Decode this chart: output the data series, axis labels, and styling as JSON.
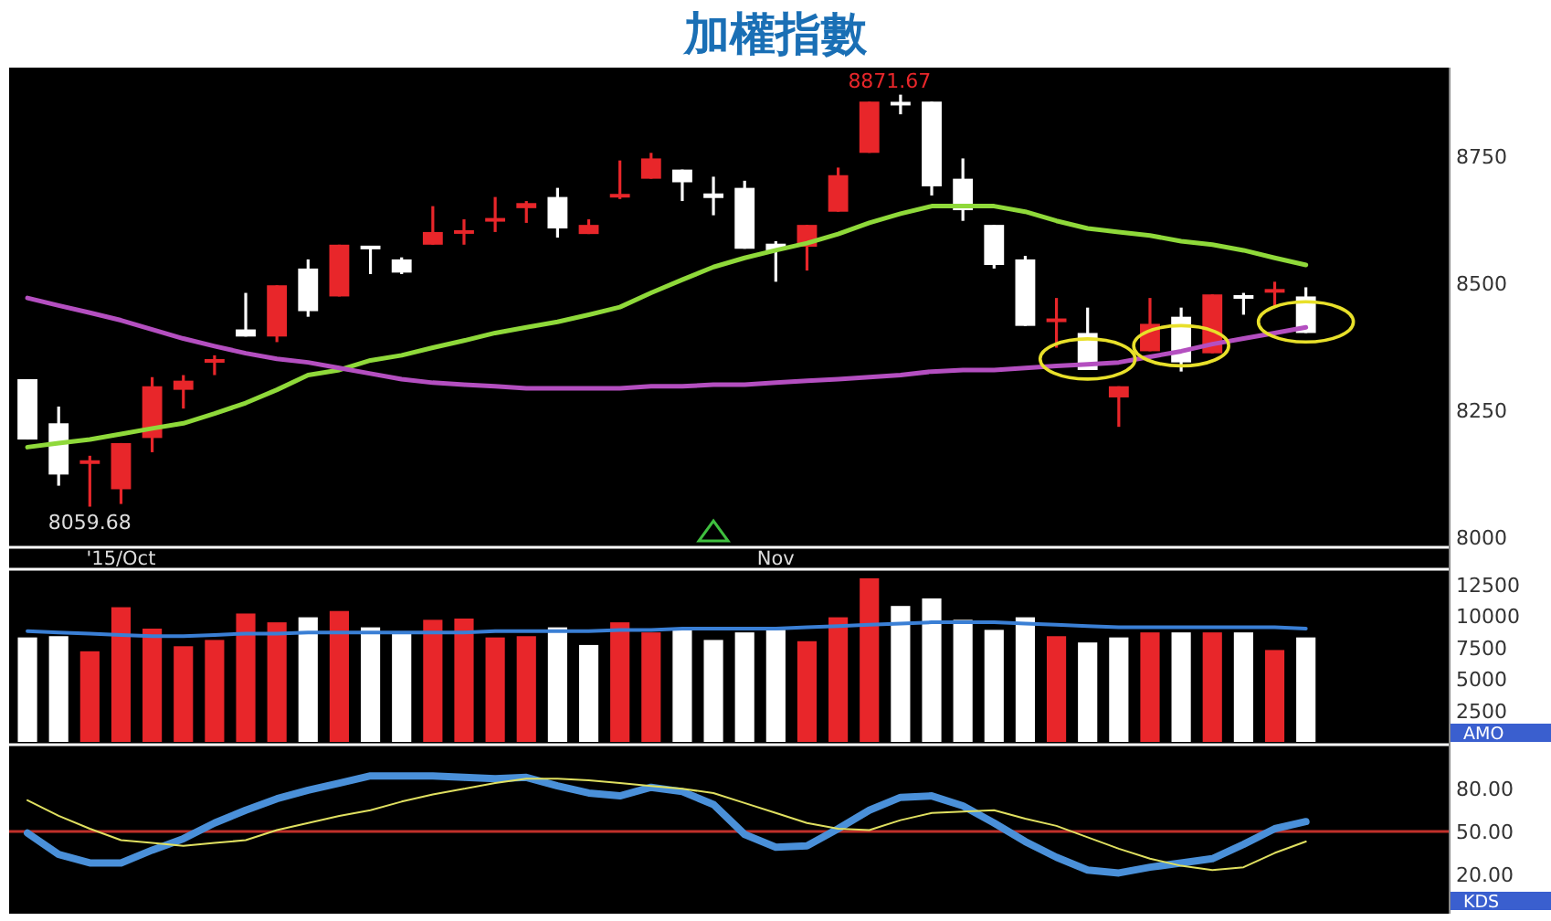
{
  "chart_data": [
    {
      "type": "candlestick",
      "title": "加權指數",
      "categories": [
        null,
        null,
        null,
        "'15/Oct",
        null,
        null,
        null,
        null,
        null,
        null,
        null,
        null,
        null,
        null,
        null,
        null,
        null,
        null,
        null,
        null,
        null,
        null,
        null,
        null,
        "Nov",
        null,
        null,
        null,
        null,
        null,
        null,
        null,
        null,
        null,
        null,
        null,
        null,
        null,
        null,
        null,
        null,
        null
      ],
      "ohlc": [
        [
          8311,
          8311,
          8192,
          8192
        ],
        [
          8224,
          8257,
          8101,
          8123
        ],
        [
          8145,
          8160,
          8059.68,
          8150
        ],
        [
          8094,
          8185,
          8065,
          8185
        ],
        [
          8195,
          8315,
          8167,
          8297
        ],
        [
          8290,
          8319,
          8253,
          8308
        ],
        [
          8344,
          8358,
          8319,
          8350
        ],
        [
          8409,
          8481,
          8395,
          8395
        ],
        [
          8395,
          8496,
          8384,
          8496
        ],
        [
          8529,
          8547,
          8434,
          8445
        ],
        [
          8474,
          8576,
          8474,
          8576
        ],
        [
          8572,
          8572,
          8518,
          8569
        ],
        [
          8547,
          8551,
          8518,
          8521
        ],
        [
          8576,
          8652,
          8576,
          8601
        ],
        [
          8598,
          8626,
          8576,
          8604
        ],
        [
          8622,
          8670,
          8601,
          8628
        ],
        [
          8648,
          8662,
          8619,
          8658
        ],
        [
          8670,
          8688,
          8590,
          8608
        ],
        [
          8597,
          8626,
          8597,
          8615
        ],
        [
          8670,
          8742,
          8666,
          8675
        ],
        [
          8706,
          8757,
          8706,
          8746
        ],
        [
          8724,
          8724,
          8662,
          8699
        ],
        [
          8677,
          8710,
          8634,
          8668
        ],
        [
          8688,
          8702,
          8568,
          8568
        ],
        [
          8578,
          8583,
          8503,
          8565
        ],
        [
          8572,
          8615,
          8525,
          8615
        ],
        [
          8641,
          8728,
          8641,
          8713
        ],
        [
          8757,
          8858,
          8757,
          8858
        ],
        [
          8856,
          8871.67,
          8833,
          8852
        ],
        [
          8858,
          8858,
          8673,
          8691
        ],
        [
          8706,
          8746,
          8623,
          8644
        ],
        [
          8615,
          8615,
          8529,
          8536
        ],
        [
          8547,
          8554,
          8416,
          8416
        ],
        [
          8424,
          8471,
          8373,
          8430
        ],
        [
          8402,
          8452,
          8329,
          8329
        ],
        [
          8275,
          8297,
          8217,
          8297
        ],
        [
          8366,
          8471,
          8366,
          8420
        ],
        [
          8434,
          8452,
          8326,
          8344
        ],
        [
          8362,
          8478,
          8362,
          8478
        ],
        [
          8476,
          8481,
          8438,
          8470
        ],
        [
          8482,
          8503,
          8452,
          8488
        ],
        [
          8474,
          8492,
          8402,
          8402
        ]
      ],
      "colors": [
        "#ffffff",
        "#ffffff",
        "#e8262a",
        "#e8262a",
        "#e8262a",
        "#e8262a",
        "#e8262a",
        "#ffffff",
        "#e8262a",
        "#ffffff",
        "#e8262a",
        "#ffffff",
        "#ffffff",
        "#e8262a",
        "#e8262a",
        "#e8262a",
        "#e8262a",
        "#ffffff",
        "#e8262a",
        "#e8262a",
        "#e8262a",
        "#ffffff",
        "#ffffff",
        "#ffffff",
        "#ffffff",
        "#e8262a",
        "#e8262a",
        "#e8262a",
        "#ffffff",
        "#ffffff",
        "#ffffff",
        "#ffffff",
        "#ffffff",
        "#e8262a",
        "#ffffff",
        "#e8262a",
        "#e8262a",
        "#ffffff",
        "#e8262a",
        "#ffffff",
        "#e8262a",
        "#ffffff"
      ],
      "series": [
        {
          "type": "line",
          "color": "#8fd93a",
          "values": [
            8177,
            8185,
            8192,
            8203,
            8214,
            8224,
            8243,
            8264,
            8290,
            8319,
            8329,
            8348,
            8358,
            8373,
            8387,
            8402,
            8413,
            8424,
            8438,
            8453,
            8481,
            8507,
            8532,
            8550,
            8565,
            8579,
            8597,
            8619,
            8637,
            8652,
            8652,
            8652,
            8641,
            8623,
            8608,
            8601,
            8594,
            8583,
            8576,
            8565,
            8550,
            8536
          ]
        },
        {
          "type": "line",
          "color": "#b44fc0",
          "values": [
            8471,
            8456,
            8442,
            8427,
            8409,
            8391,
            8376,
            8362,
            8351,
            8344,
            8333,
            8322,
            8311,
            8304,
            8300,
            8297,
            8293,
            8293,
            8293,
            8293,
            8297,
            8297,
            8300,
            8300,
            8304,
            8308,
            8311,
            8315,
            8319,
            8326,
            8329,
            8329,
            8333,
            8337,
            8340,
            8344,
            8355,
            8366,
            8380,
            8391,
            8402,
            8413
          ]
        }
      ],
      "ylim": [
        7985,
        8925
      ],
      "yticks": [
        8000,
        8250,
        8500,
        8750
      ],
      "annotations": [
        {
          "text": "8871.67",
          "y": 8871.67
        },
        {
          "text": "8059.68",
          "y": 8059.68
        }
      ]
    },
    {
      "type": "bar",
      "categories": [
        null,
        null,
        null,
        null,
        null,
        null,
        null,
        null,
        null,
        null,
        null,
        null,
        null,
        null,
        null,
        null,
        null,
        null,
        null,
        null,
        null,
        null,
        null,
        null,
        null,
        null,
        null,
        null,
        null,
        null,
        null,
        null,
        null,
        null,
        null,
        null,
        null,
        null,
        null,
        null,
        null,
        null
      ],
      "series": [
        {
          "type": "bar",
          "values": [
            8300,
            8400,
            7200,
            10700,
            9000,
            7600,
            8100,
            10200,
            9500,
            9900,
            10400,
            9100,
            8700,
            9700,
            9800,
            8300,
            8400,
            9100,
            7700,
            9500,
            8700,
            8900,
            8100,
            8700,
            8900,
            8000,
            9900,
            13000,
            10800,
            11400,
            9700,
            8900,
            9900,
            8400,
            7900,
            8300,
            8700,
            8700,
            8700,
            8700,
            7300,
            8300
          ],
          "colors": [
            "#ffffff",
            "#ffffff",
            "#e8262a",
            "#e8262a",
            "#e8262a",
            "#e8262a",
            "#e8262a",
            "#e8262a",
            "#e8262a",
            "#ffffff",
            "#e8262a",
            "#ffffff",
            "#ffffff",
            "#e8262a",
            "#e8262a",
            "#e8262a",
            "#e8262a",
            "#ffffff",
            "#ffffff",
            "#e8262a",
            "#e8262a",
            "#ffffff",
            "#ffffff",
            "#ffffff",
            "#ffffff",
            "#e8262a",
            "#e8262a",
            "#e8262a",
            "#ffffff",
            "#ffffff",
            "#ffffff",
            "#ffffff",
            "#ffffff",
            "#e8262a",
            "#ffffff",
            "#ffffff",
            "#e8262a",
            "#ffffff",
            "#e8262a",
            "#ffffff",
            "#e8262a",
            "#ffffff"
          ]
        },
        {
          "type": "line",
          "color": "#3a7fd5",
          "values": [
            8800,
            8700,
            8600,
            8500,
            8400,
            8400,
            8500,
            8600,
            8600,
            8700,
            8700,
            8700,
            8700,
            8700,
            8700,
            8800,
            8800,
            8800,
            8800,
            8900,
            8900,
            9000,
            9000,
            9000,
            9000,
            9100,
            9200,
            9300,
            9400,
            9500,
            9500,
            9500,
            9400,
            9300,
            9200,
            9100,
            9100,
            9100,
            9100,
            9100,
            9100,
            9000
          ]
        }
      ],
      "ylim": [
        0,
        13500
      ],
      "yticks": [
        2500,
        5000,
        7500,
        10000,
        12500
      ],
      "tick_labels": "y",
      "annotations": [
        "AMO"
      ]
    },
    {
      "type": "line",
      "categories": [
        null,
        null,
        null,
        null,
        null,
        null,
        null,
        null,
        null,
        null,
        null,
        null,
        null,
        null,
        null,
        null,
        null,
        null,
        null,
        null,
        null,
        null,
        null,
        null,
        null,
        null,
        null,
        null,
        null,
        null,
        null,
        null,
        null,
        null,
        null,
        null,
        null,
        null,
        null,
        null,
        null,
        null
      ],
      "series": [
        {
          "type": "line",
          "color": "#4a90d9",
          "values": [
            49,
            34,
            28,
            28,
            37,
            45,
            56,
            65,
            73,
            79,
            84,
            89,
            89,
            89,
            88,
            87,
            88,
            82,
            77,
            75,
            81,
            78,
            69,
            48,
            39,
            40,
            52,
            65,
            74,
            75,
            68,
            56,
            43,
            32,
            23,
            21,
            25,
            28,
            31,
            41,
            52,
            57
          ]
        },
        {
          "type": "line",
          "color": "#e0e060",
          "values": [
            72,
            61,
            52,
            44,
            42,
            40,
            42,
            44,
            51,
            56,
            61,
            65,
            71,
            76,
            80,
            84,
            87,
            87,
            86,
            84,
            82,
            80,
            77,
            70,
            63,
            56,
            52,
            51,
            58,
            63,
            64,
            65,
            59,
            54,
            46,
            38,
            31,
            26,
            23,
            25,
            35,
            43
          ]
        }
      ],
      "ylim": [
        -5,
        109
      ],
      "yticks": [
        {
          "value": 20,
          "label": "20.00"
        },
        {
          "value": 50,
          "label": "50.00"
        },
        {
          "value": 80,
          "label": "80.00"
        }
      ],
      "tick_labels": "y",
      "ref_lines": [
        {
          "axis": "y",
          "value": 50,
          "color": "#c0302a"
        }
      ],
      "annotations": [
        "KDS"
      ]
    }
  ]
}
